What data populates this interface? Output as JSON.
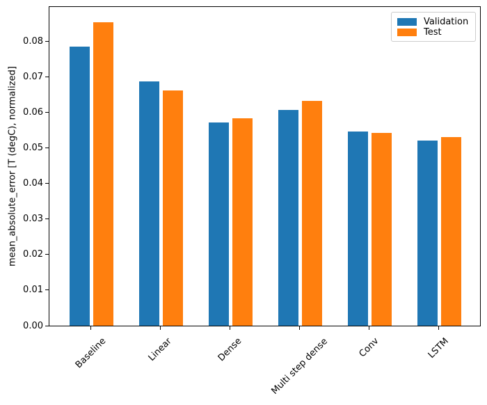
{
  "chart_data": {
    "type": "bar",
    "title": "",
    "xlabel": "",
    "ylabel": "mean_absolute_error [T (degC), normalized]",
    "categories": [
      "Baseline",
      "Linear",
      "Dense",
      "Multi step dense",
      "Conv",
      "LSTM"
    ],
    "series": [
      {
        "name": "Validation",
        "color": "#1f77b4",
        "values": [
          0.0785,
          0.0686,
          0.0572,
          0.0607,
          0.0545,
          0.052
        ]
      },
      {
        "name": "Test",
        "color": "#ff7f0e",
        "values": [
          0.0852,
          0.0662,
          0.0583,
          0.0632,
          0.0541,
          0.0531
        ]
      }
    ],
    "ylim": [
      0,
      0.0896
    ],
    "yticks": [
      0.0,
      0.01,
      0.02,
      0.03,
      0.04,
      0.05,
      0.06,
      0.07,
      0.08
    ],
    "ytick_labels": [
      "0.00",
      "0.01",
      "0.02",
      "0.03",
      "0.04",
      "0.05",
      "0.06",
      "0.07",
      "0.08"
    ],
    "x_tick_rotation": 45,
    "grid": false,
    "legend": {
      "position": "upper right"
    }
  }
}
